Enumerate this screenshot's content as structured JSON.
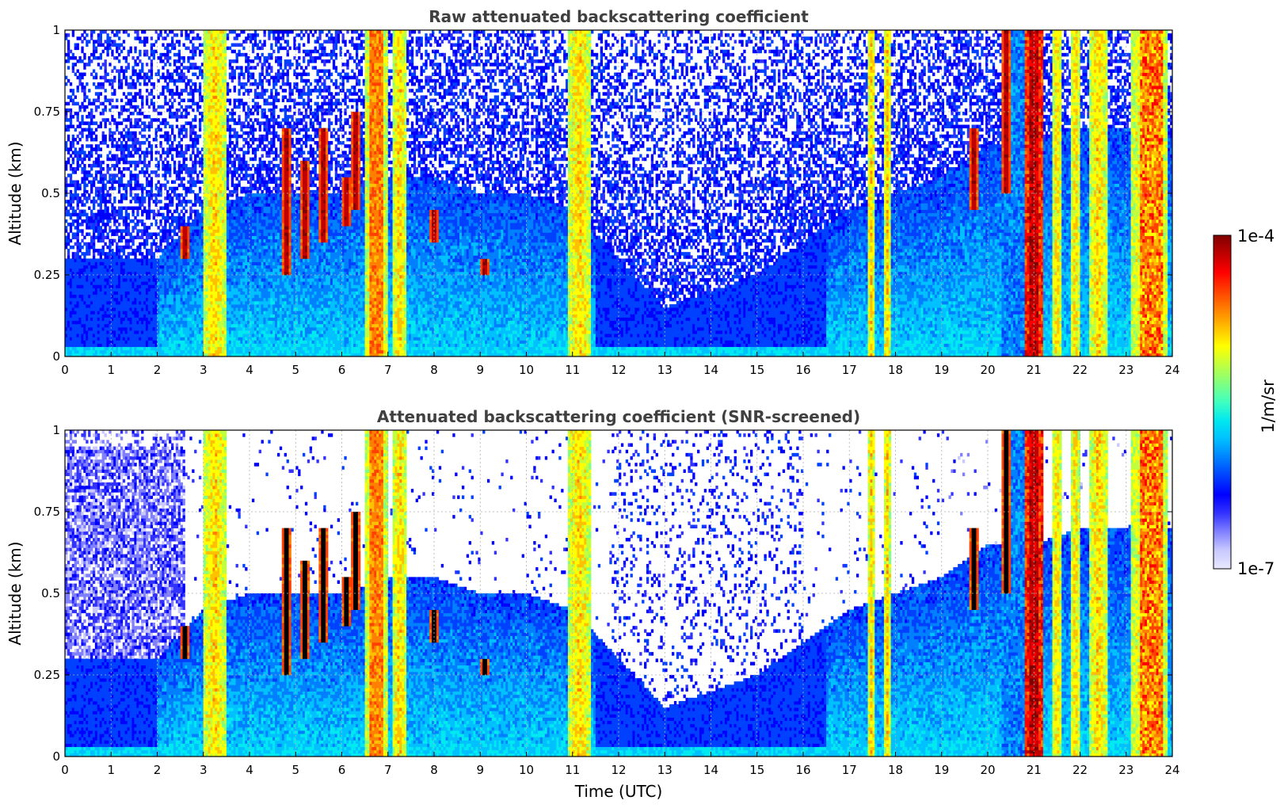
{
  "chart_data": [
    {
      "type": "heatmap",
      "title": "Raw attenuated backscattering coefficient",
      "xlabel": "",
      "ylabel": "Altitude (km)",
      "xlim": [
        0,
        24
      ],
      "ylim": [
        0,
        1
      ],
      "x_ticks": [
        "0",
        "1",
        "2",
        "3",
        "4",
        "5",
        "6",
        "7",
        "8",
        "9",
        "10",
        "11",
        "12",
        "13",
        "14",
        "15",
        "16",
        "17",
        "18",
        "19",
        "20",
        "21",
        "22",
        "23",
        "24"
      ],
      "y_ticks": [
        "0",
        "0.25",
        "0.5",
        "0.75",
        "1"
      ],
      "grid": true,
      "colormap": "jet",
      "screened": false,
      "features": {
        "fog_columns_utc": [
          [
            3.0,
            3.5
          ],
          [
            6.5,
            7.0
          ],
          [
            7.1,
            7.4
          ],
          [
            10.9,
            11.4
          ],
          [
            17.4,
            17.55
          ],
          [
            17.75,
            17.9
          ],
          [
            20.8,
            21.2
          ],
          [
            21.4,
            21.6
          ],
          [
            21.8,
            22.0
          ],
          [
            22.2,
            22.6
          ],
          [
            23.1,
            23.9
          ]
        ],
        "boundary_layer_top_km": [
          [
            0,
            0.3
          ],
          [
            2,
            0.3
          ],
          [
            3,
            0.45
          ],
          [
            4,
            0.5
          ],
          [
            5,
            0.5
          ],
          [
            6,
            0.5
          ],
          [
            7,
            0.55
          ],
          [
            8,
            0.55
          ],
          [
            9,
            0.5
          ],
          [
            10,
            0.5
          ],
          [
            11,
            0.45
          ],
          [
            12,
            0.3
          ],
          [
            13,
            0.15
          ],
          [
            14,
            0.2
          ],
          [
            15,
            0.25
          ],
          [
            16,
            0.35
          ],
          [
            17,
            0.45
          ],
          [
            18,
            0.5
          ],
          [
            19,
            0.55
          ],
          [
            20,
            0.65
          ],
          [
            21,
            0.65
          ],
          [
            22,
            0.7
          ],
          [
            23,
            0.7
          ],
          [
            24,
            0.7
          ]
        ],
        "cloud_streaks": [
          [
            2.6,
            0.4,
            0.3
          ],
          [
            4.8,
            0.7,
            0.25
          ],
          [
            5.2,
            0.6,
            0.3
          ],
          [
            5.6,
            0.7,
            0.35
          ],
          [
            6.1,
            0.55,
            0.4
          ],
          [
            6.3,
            0.75,
            0.45
          ],
          [
            6.9,
            0.65,
            0.45
          ],
          [
            8.0,
            0.45,
            0.35
          ],
          [
            9.1,
            0.3,
            0.25
          ],
          [
            19.7,
            0.7,
            0.45
          ],
          [
            20.4,
            1.0,
            0.5
          ]
        ]
      }
    },
    {
      "type": "heatmap",
      "title": "Attenuated backscattering coefficient (SNR-screened)",
      "xlabel": "Time (UTC)",
      "ylabel": "Altitude (km)",
      "xlim": [
        0,
        24
      ],
      "ylim": [
        0,
        1
      ],
      "x_ticks": [
        "0",
        "1",
        "2",
        "3",
        "4",
        "5",
        "6",
        "7",
        "8",
        "9",
        "10",
        "11",
        "12",
        "13",
        "14",
        "15",
        "16",
        "17",
        "18",
        "19",
        "20",
        "21",
        "22",
        "23",
        "24"
      ],
      "y_ticks": [
        "0",
        "0.25",
        "0.5",
        "0.75",
        "1"
      ],
      "grid": true,
      "colormap": "jet",
      "screened": true
    }
  ],
  "colorbar": {
    "max_label": "1e-4",
    "min_label": "1e-7",
    "unit_label": "1/m/sr",
    "colors": [
      "#e8e8ff",
      "#c8c8ff",
      "#8080ff",
      "#3232ff",
      "#0000ff",
      "#0040ff",
      "#0080ff",
      "#00c0ff",
      "#00e8f0",
      "#40ffc0",
      "#80ff80",
      "#c0ff40",
      "#ffff00",
      "#ffc000",
      "#ff8000",
      "#ff4000",
      "#ff0000",
      "#c00000",
      "#800000"
    ]
  }
}
